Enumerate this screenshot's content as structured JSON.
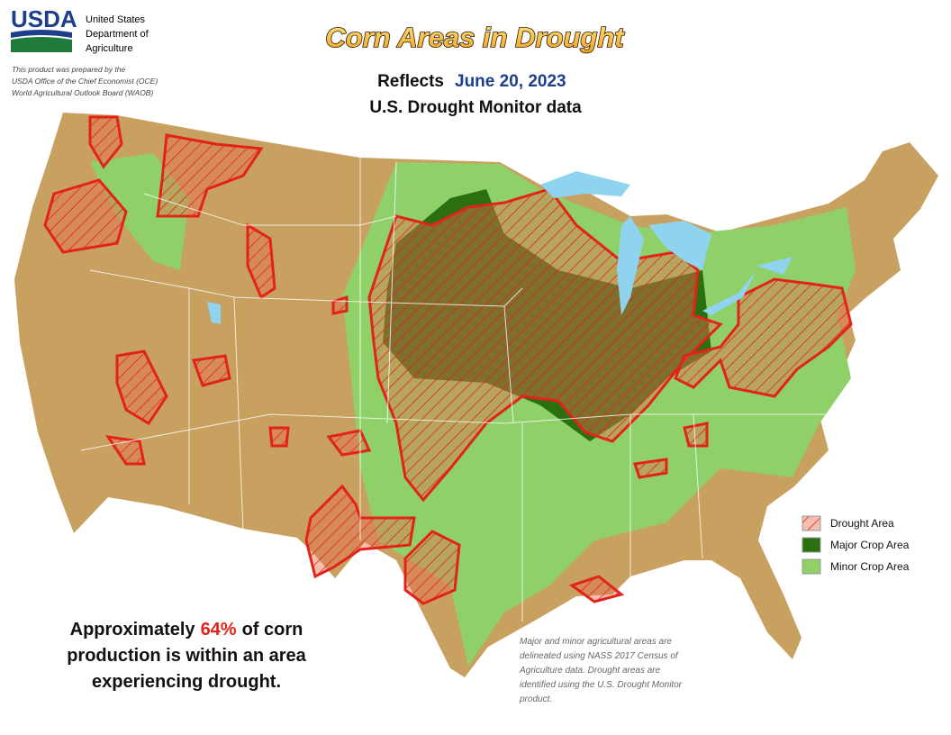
{
  "header": {
    "logo": "USDA",
    "agency": [
      "United States",
      "Department of",
      "Agriculture"
    ],
    "credit": [
      "This product was prepared by the",
      "USDA Office of the Chief Economist (OCE)",
      "World Agricultural Outlook Board (WAOB)"
    ]
  },
  "title": "Corn Areas in Drought",
  "subtitle": {
    "prefix": "Reflects",
    "date": "June 20, 2023",
    "source": "U.S. Drought Monitor data"
  },
  "legend": [
    "Drought Area",
    "Major Crop Area",
    "Minor Crop Area"
  ],
  "summary": {
    "before": "Approximately",
    "percent": "64%",
    "after": "of corn",
    "lines": [
      "production is within an area",
      "experiencing drought."
    ]
  },
  "note": [
    "Major and minor agricultural areas are",
    "delineated using NASS 2017 Census of",
    "Agriculture data.  Drought areas are",
    "identified using the U.S. Drought Monitor",
    "product."
  ]
}
